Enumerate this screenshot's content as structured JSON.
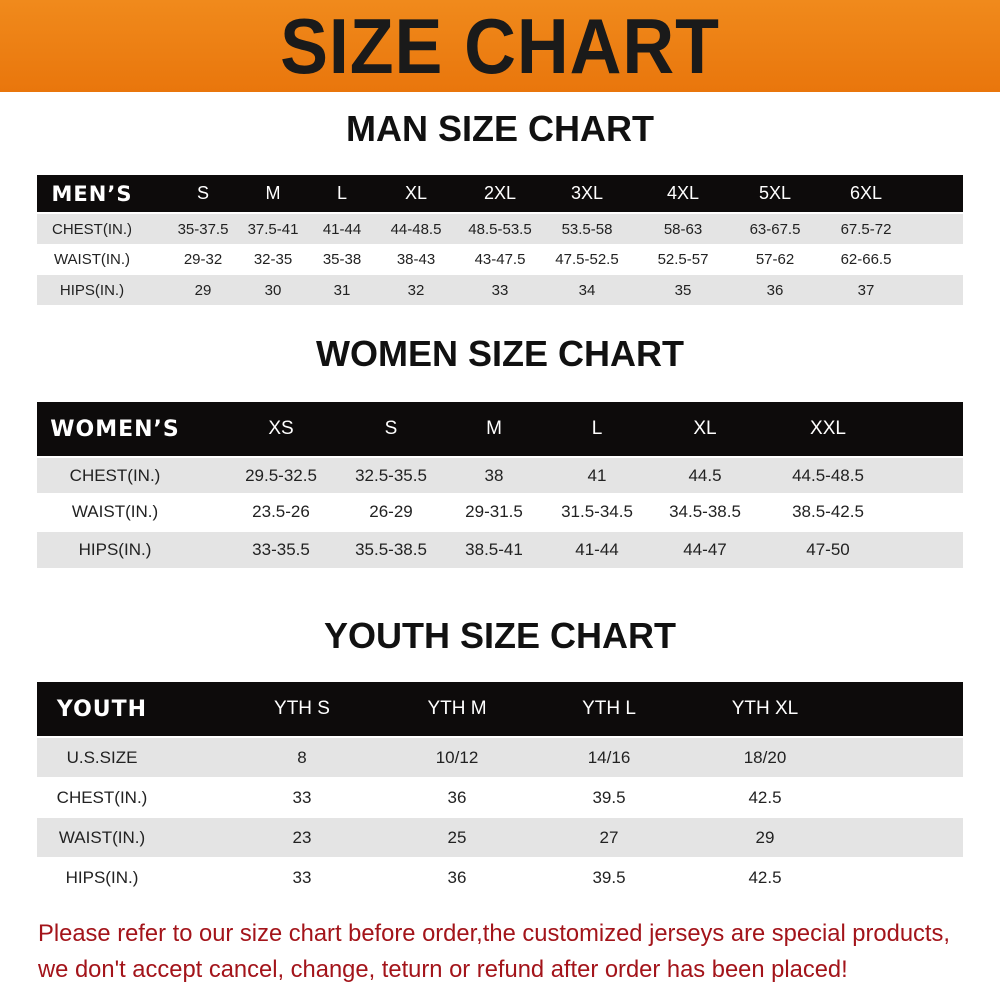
{
  "title": "SIZE CHART",
  "colors": {
    "banner": "#ee8014",
    "header_row": "#0d0b0b",
    "stripe": "#e4e4e4",
    "note": "#a3141a"
  },
  "men": {
    "title": "MAN SIZE CHART",
    "header": [
      "MEN’S",
      "S",
      "M",
      "L",
      "XL",
      "2XL",
      "3XL",
      "4XL",
      "5XL",
      "6XL"
    ],
    "rows": [
      [
        "CHEST(IN.)",
        "35-37.5",
        "37.5-41",
        "41-44",
        "44-48.5",
        "48.5-53.5",
        "53.5-58",
        "58-63",
        "63-67.5",
        "67.5-72"
      ],
      [
        "WAIST(IN.)",
        "29-32",
        "32-35",
        "35-38",
        "38-43",
        "43-47.5",
        "47.5-52.5",
        "52.5-57",
        "57-62",
        "62-66.5"
      ],
      [
        "HIPS(IN.)",
        "29",
        "30",
        "31",
        "32",
        "33",
        "34",
        "35",
        "36",
        "37"
      ]
    ]
  },
  "women": {
    "title": "WOMEN SIZE CHART",
    "header": [
      "WOMEN’S",
      "XS",
      "S",
      "M",
      "L",
      "XL",
      "XXL"
    ],
    "rows": [
      [
        "CHEST(IN.)",
        "29.5-32.5",
        "32.5-35.5",
        "38",
        "41",
        "44.5",
        "44.5-48.5"
      ],
      [
        "WAIST(IN.)",
        "23.5-26",
        "26-29",
        "29-31.5",
        "31.5-34.5",
        "34.5-38.5",
        "38.5-42.5"
      ],
      [
        "HIPS(IN.)",
        "33-35.5",
        "35.5-38.5",
        "38.5-41",
        "41-44",
        "44-47",
        "47-50"
      ]
    ]
  },
  "youth": {
    "title": "YOUTH SIZE CHART",
    "header": [
      "YOUTH",
      "YTH S",
      "YTH M",
      "YTH L",
      "YTH XL"
    ],
    "rows": [
      [
        "U.S.SIZE",
        "8",
        "10/12",
        "14/16",
        "18/20"
      ],
      [
        "CHEST(IN.)",
        "33",
        "36",
        "39.5",
        "42.5"
      ],
      [
        "WAIST(IN.)",
        "23",
        "25",
        "27",
        "29"
      ],
      [
        "HIPS(IN.)",
        "33",
        "36",
        "39.5",
        "42.5"
      ]
    ]
  },
  "notice": [
    "Please refer to our size chart before order,the customized jerseys are special products,",
    "we don't accept cancel, change, teturn or refund after order has been placed!"
  ]
}
